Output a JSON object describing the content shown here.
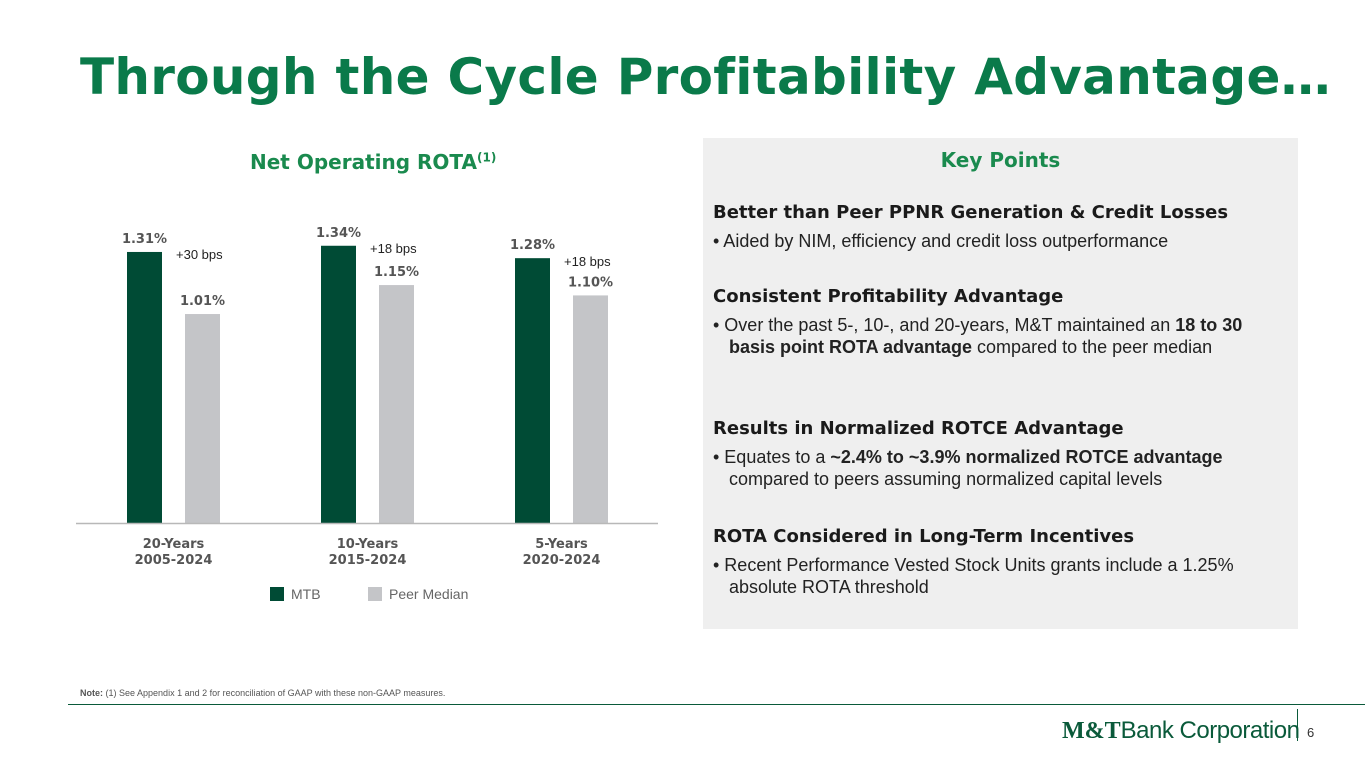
{
  "slide": {
    "title": "Through the Cycle Profitability Advantage…",
    "page_number": "6",
    "note_label": "Note:",
    "note_text": "(1) See Appendix 1 and 2 for reconciliation of GAAP with these non-GAAP measures.",
    "logo_bold": "M&T",
    "logo_rest": "Bank Corporation"
  },
  "colors": {
    "mtb": "#004b35",
    "peer": "#c4c5c8",
    "accent": "#1a8a4e"
  },
  "chart_data": {
    "type": "bar",
    "title": "Net Operating ROTA",
    "title_sup": "(1)",
    "categories": [
      {
        "line1": "20-Years",
        "line2": "2005-2024"
      },
      {
        "line1": "10-Years",
        "line2": "2015-2024"
      },
      {
        "line1": "5-Years",
        "line2": "2020-2024"
      }
    ],
    "series": [
      {
        "name": "MTB",
        "values": [
          1.31,
          1.34,
          1.28
        ],
        "labels": [
          "1.31%",
          "1.34%",
          "1.28%"
        ]
      },
      {
        "name": "Peer Median",
        "values": [
          1.01,
          1.15,
          1.1
        ],
        "labels": [
          "1.01%",
          "1.15%",
          "1.10%"
        ]
      }
    ],
    "annotations": [
      "+30 bps",
      "+18 bps",
      "+18 bps"
    ],
    "ylim": [
      0,
      1.45
    ],
    "legend": "bottom-center",
    "grid": false
  },
  "key_points": {
    "title": "Key Points",
    "sections": [
      {
        "heading": "Better than Peer PPNR Generation & Credit Losses",
        "bullet": "• Aided by NIM, efficiency and credit loss outperformance"
      },
      {
        "heading": "Consistent Profitability Advantage",
        "bullet_pre": "• Over the past 5-, 10-, and 20-years, M&T maintained an ",
        "bullet_bold": "18 to 30 basis point ROTA advantage",
        "bullet_post": " compared to the peer median"
      },
      {
        "heading": "Results in Normalized ROTCE Advantage",
        "bullet_pre": "• Equates to a ",
        "bullet_bold": "~2.4% to ~3.9% normalized ROTCE advantage",
        "bullet_post": " compared to peers assuming normalized capital levels"
      },
      {
        "heading": "ROTA Considered in Long-Term Incentives",
        "bullet": "• Recent Performance Vested Stock Units grants include a 1.25% absolute ROTA threshold"
      }
    ]
  }
}
